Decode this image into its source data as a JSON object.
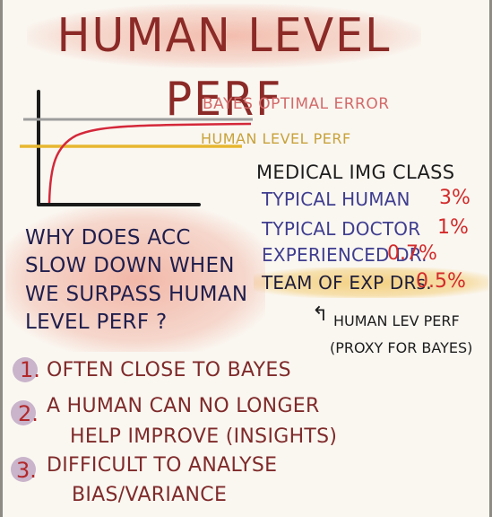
{
  "title": "HUMAN LEVEL PERF",
  "graph": {
    "legend_bayes": "BAYES OPTIMAL ERROR",
    "legend_human": "HUMAN LEVEL PERF",
    "colors": {
      "bayes_line": "#9d9d9d",
      "human_line": "#e7b730",
      "curve": "#d4283a",
      "axes": "#1a1a1a"
    }
  },
  "medical": {
    "heading": "MEDICAL IMG CLASS",
    "rows": [
      {
        "label": "TYPICAL HUMAN",
        "value": "3%"
      },
      {
        "label": "TYPICAL DOCTOR",
        "value": "1%"
      },
      {
        "label": "EXPERIENCED DR.",
        "value": "0.7%"
      },
      {
        "label": "TEAM OF EXP DRs.",
        "value": "0.5%"
      }
    ],
    "proxy_line1": "HUMAN LEV PERF",
    "proxy_line2": "(PROXY FOR BAYES)"
  },
  "question": {
    "lines": [
      "WHY DOES ACC",
      "SLOW DOWN WHEN",
      "WE SURPASS HUMAN",
      "LEVEL PERF ?"
    ]
  },
  "points": [
    {
      "num": "1.",
      "lines": [
        "OFTEN CLOSE TO BAYES"
      ]
    },
    {
      "num": "2.",
      "lines": [
        "A HUMAN CAN NO LONGER",
        "HELP IMPROVE (INSIGHTS)"
      ]
    },
    {
      "num": "3.",
      "lines": [
        "DIFFICULT TO ANALYSE",
        "BIAS/VARIANCE"
      ]
    }
  ]
}
